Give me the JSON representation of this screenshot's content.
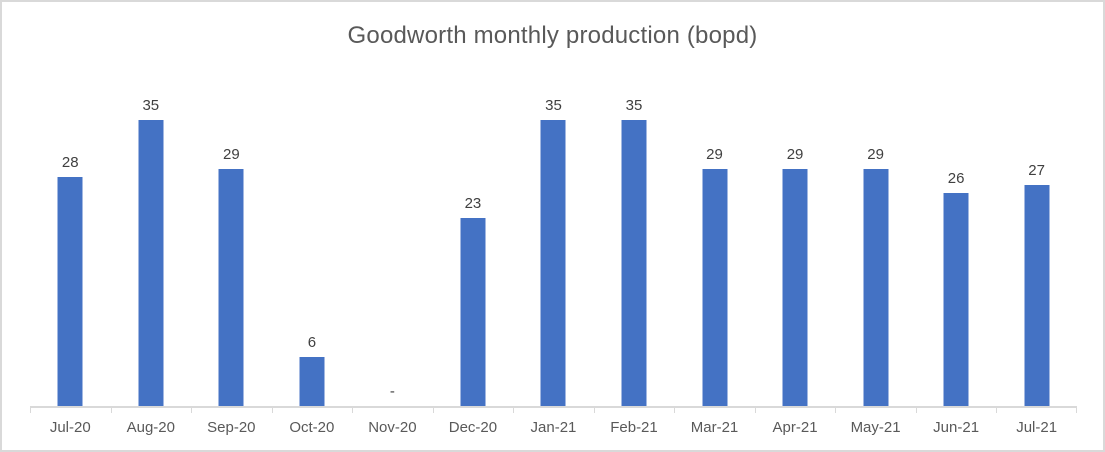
{
  "chart_data": {
    "type": "bar",
    "title": "Goodworth monthly production (bopd)",
    "categories": [
      "Jul-20",
      "Aug-20",
      "Sep-20",
      "Oct-20",
      "Nov-20",
      "Dec-20",
      "Jan-21",
      "Feb-21",
      "Mar-21",
      "Apr-21",
      "May-21",
      "Jun-21",
      "Jul-21"
    ],
    "values": [
      28,
      35,
      29,
      6,
      null,
      23,
      35,
      35,
      29,
      29,
      29,
      26,
      27
    ],
    "data_labels": [
      "28",
      "35",
      "29",
      "6",
      "-",
      "23",
      "35",
      "35",
      "29",
      "29",
      "29",
      "26",
      "27"
    ],
    "xlabel": "",
    "ylabel": "",
    "ylim": [
      0,
      40
    ],
    "grid": false,
    "legend": false,
    "bar_color": "#4472c4",
    "axis_color": "#d9d9d9",
    "title_color": "#595959",
    "label_color": "#404040",
    "tick_label_color": "#595959"
  }
}
